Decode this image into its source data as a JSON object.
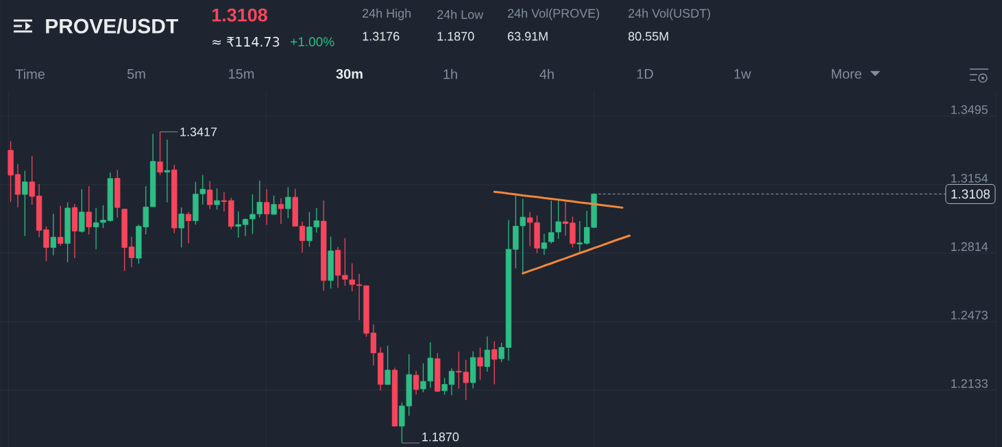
{
  "chart_data": {
    "type": "candlestick",
    "title": "PROVE/USDT",
    "annotations": [
      "1.3108",
      "≈ ₹114.73",
      "+1.00%",
      "24h High",
      "1.3176",
      "24h Low",
      "1.1870",
      "24h Vol(PROVE)",
      "63.91M",
      "24h Vol(USDT)",
      "80.55M",
      "Time",
      "5m",
      "15m",
      "30m",
      "1h",
      "4h",
      "1D",
      "1w",
      "More",
      "1.3417",
      "1.1870"
    ],
    "categories": [
      null,
      null,
      null,
      null,
      null,
      null,
      null,
      null,
      null,
      null,
      null,
      null,
      null,
      null,
      null,
      null,
      null,
      null,
      null,
      null,
      null,
      null,
      null,
      null,
      null,
      null,
      null,
      null,
      null,
      null,
      null,
      null,
      null,
      null,
      null,
      null,
      null,
      null,
      null,
      null,
      null,
      null,
      null,
      null,
      null,
      null,
      null,
      null,
      null,
      null,
      null,
      null,
      null,
      null,
      null,
      null,
      null,
      null,
      null,
      null,
      null,
      null,
      null,
      null,
      null,
      null,
      null,
      null,
      null,
      null,
      null,
      null,
      null,
      null,
      null,
      null,
      null,
      null,
      null,
      null,
      null,
      null,
      null,
      null,
      null,
      null,
      null,
      null,
      null,
      null,
      null,
      null,
      null,
      null,
      null,
      null,
      null,
      null,
      null,
      null,
      null,
      null,
      null,
      null,
      null,
      null,
      null,
      null,
      null,
      null,
      null,
      null,
      null,
      null,
      null,
      null,
      null,
      null,
      null,
      null,
      null,
      null,
      null,
      null,
      null,
      null,
      null,
      null,
      null,
      null,
      null,
      null,
      null,
      null,
      null,
      null,
      null,
      null,
      null,
      null
    ],
    "ohlc": [
      null,
      [
        1.3325,
        1.337,
        1.3069,
        1.3202
      ],
      [
        1.3205,
        1.3257,
        1.3041,
        1.3106
      ],
      [
        1.3106,
        1.3223,
        1.2899,
        1.3168
      ],
      [
        1.3168,
        1.3296,
        1.3055,
        1.3096
      ],
      [
        1.3098,
        1.3157,
        1.2893,
        1.2927
      ],
      [
        1.293,
        1.2947,
        1.2774,
        1.2842
      ],
      [
        1.2842,
        1.301,
        1.2803,
        1.2893
      ],
      [
        1.2893,
        1.3049,
        1.2851,
        1.2862
      ],
      [
        1.2862,
        1.3066,
        1.2769,
        1.3038
      ],
      [
        1.3041,
        1.3058,
        1.2789,
        1.2924
      ],
      [
        1.2922,
        1.3132,
        1.2916,
        1.3018
      ],
      [
        1.3018,
        1.3147,
        1.2907,
        1.2944
      ],
      [
        1.2944,
        1.3039,
        1.2833,
        1.2965
      ],
      [
        1.2967,
        1.3052,
        1.2939,
        1.2978
      ],
      [
        1.2976,
        1.3215,
        1.2971,
        1.3185
      ],
      [
        1.3186,
        1.3228,
        1.299,
        1.3041
      ],
      [
        1.3033,
        1.3035,
        1.2726,
        1.2842
      ],
      [
        1.2845,
        1.2896,
        1.2744,
        1.2791
      ],
      [
        1.2789,
        1.2956,
        1.2761,
        1.2947
      ],
      [
        1.2944,
        1.3147,
        1.2908,
        1.3043
      ],
      [
        1.3045,
        1.3407,
        1.3045,
        1.327
      ],
      [
        1.3268,
        1.3417,
        1.3202,
        1.3217
      ],
      [
        1.3217,
        1.3378,
        1.3066,
        1.3225
      ],
      [
        1.3228,
        1.3253,
        1.2914,
        1.2939
      ],
      [
        1.2939,
        1.3041,
        1.2842,
        1.3009
      ],
      [
        1.3007,
        1.3018,
        1.2863,
        1.2975
      ],
      [
        1.2975,
        1.3168,
        1.2956,
        1.3107
      ],
      [
        1.3109,
        1.3203,
        1.3056,
        1.3132
      ],
      [
        1.3128,
        1.3172,
        1.3033,
        1.3055
      ],
      [
        1.3055,
        1.3136,
        1.303,
        1.3075
      ],
      [
        1.3075,
        1.3117,
        1.3021,
        1.307
      ],
      [
        1.3075,
        1.3089,
        1.2933,
        1.2947
      ],
      [
        1.2947,
        1.3021,
        1.2891,
        1.2956
      ],
      [
        1.2956,
        1.2987,
        1.2899,
        1.2982
      ],
      [
        1.2984,
        1.3106,
        1.291,
        1.3007
      ],
      [
        1.3009,
        1.3175,
        1.2992,
        1.3067
      ],
      [
        1.3066,
        1.3132,
        1.2954,
        1.3009
      ],
      [
        1.3007,
        1.31,
        1.3007,
        1.3056
      ],
      [
        1.3056,
        1.3086,
        1.2959,
        1.3035
      ],
      [
        1.3035,
        1.3143,
        1.2988,
        1.3092
      ],
      [
        1.3092,
        1.3134,
        1.2948,
        1.2948
      ],
      [
        1.2948,
        1.2971,
        1.2817,
        1.2876
      ],
      [
        1.2876,
        1.3018,
        1.2846,
        1.2944
      ],
      [
        1.2944,
        1.3038,
        1.2916,
        1.2975
      ],
      [
        1.2973,
        1.3075,
        1.2627,
        1.2678
      ],
      [
        1.2678,
        1.2896,
        1.2638,
        1.2825
      ],
      [
        1.2828,
        1.2845,
        1.2641,
        1.2704
      ],
      [
        1.2704,
        1.2888,
        1.2652,
        1.2684
      ],
      [
        1.2681,
        1.2763,
        1.2624,
        1.2658
      ],
      [
        1.2657,
        1.2711,
        1.2481,
        1.2653
      ],
      [
        1.2652,
        1.2652,
        1.2398,
        1.2415
      ],
      [
        1.2417,
        1.246,
        1.2255,
        1.2318
      ],
      [
        1.2317,
        1.2345,
        1.2131,
        1.2161
      ],
      [
        1.2161,
        1.2354,
        1.2158,
        1.2232
      ],
      [
        1.2232,
        1.2244,
        1.1952,
        1.1954
      ],
      [
        1.1954,
        1.2071,
        1.187,
        1.2054
      ],
      [
        1.2054,
        1.2311,
        1.2005,
        1.221
      ],
      [
        1.2207,
        1.2229,
        1.211,
        1.2136
      ],
      [
        1.2139,
        1.2266,
        1.2122,
        1.2176
      ],
      [
        1.2178,
        1.2371,
        1.2144,
        1.2292
      ],
      [
        1.2289,
        1.2317,
        1.2124,
        1.2127
      ],
      [
        1.213,
        1.2193,
        1.211,
        1.2161
      ],
      [
        1.2161,
        1.2241,
        1.2108,
        1.2227
      ],
      [
        1.2227,
        1.2324,
        1.2139,
        1.2222
      ],
      [
        1.2222,
        1.2284,
        1.2084,
        1.217
      ],
      [
        1.217,
        1.2326,
        1.2141,
        1.2295
      ],
      [
        1.2295,
        1.2343,
        1.2184,
        1.2252
      ],
      [
        1.225,
        1.24,
        1.2224,
        1.2332
      ],
      [
        1.2334,
        1.2375,
        1.2161,
        1.2286
      ],
      [
        1.2289,
        1.2368,
        1.2272,
        1.2345
      ],
      [
        1.2345,
        1.2978,
        1.228,
        1.2833
      ],
      [
        1.2833,
        1.31,
        1.2738,
        1.2948
      ],
      [
        1.295,
        1.3084,
        1.2718,
        1.2993
      ],
      [
        1.299,
        1.3018,
        1.2848,
        1.2967
      ],
      [
        1.2965,
        1.3001,
        1.2814,
        1.2839
      ],
      [
        1.2837,
        1.291,
        1.2806,
        1.2865
      ],
      [
        1.2871,
        1.3075,
        1.2862,
        1.2916
      ],
      [
        1.2919,
        1.3075,
        1.2886,
        1.297
      ],
      [
        1.297,
        1.3069,
        1.2902,
        1.2961
      ],
      [
        1.2964,
        1.2995,
        1.2842,
        1.2862
      ],
      [
        1.2859,
        1.2973,
        1.282,
        1.2865
      ],
      [
        1.2863,
        1.3024,
        1.2857,
        1.2942
      ],
      [
        1.2942,
        1.3111,
        1.2939,
        1.3108
      ],
      null,
      null,
      null,
      null,
      null,
      null,
      null,
      null,
      null,
      null,
      null,
      null,
      null,
      null,
      null,
      null,
      null,
      null,
      null,
      null,
      null,
      null,
      null,
      null,
      null,
      null,
      null,
      null,
      null,
      null,
      null,
      null,
      null,
      null,
      null,
      null,
      null,
      null,
      null,
      null,
      null,
      null,
      null,
      null,
      null,
      null,
      null,
      null,
      null,
      null,
      null,
      null,
      null,
      null,
      null,
      null
    ],
    "colors": [
      null,
      "#f6465d",
      "#f6465d",
      "#2ebd85",
      "#f6465d",
      "#f6465d",
      "#f6465d",
      "#2ebd85",
      "#f6465d",
      "#2ebd85",
      "#f6465d",
      "#2ebd85",
      "#f6465d",
      "#2ebd85",
      "#2ebd85",
      "#2ebd85",
      "#f6465d",
      "#f6465d",
      "#f6465d",
      "#2ebd85",
      "#2ebd85",
      "#2ebd85",
      "#f6465d",
      "#2ebd85",
      "#f6465d",
      "#2ebd85",
      "#f6465d",
      "#2ebd85",
      "#2ebd85",
      "#f6465d",
      "#2ebd85",
      "#f6465d",
      "#f6465d",
      "#2ebd85",
      "#2ebd85",
      "#2ebd85",
      "#2ebd85",
      "#f6465d",
      "#2ebd85",
      "#f6465d",
      "#2ebd85",
      "#f6465d",
      "#f6465d",
      "#2ebd85",
      "#2ebd85",
      "#f6465d",
      "#2ebd85",
      "#f6465d",
      "#f6465d",
      "#f6465d",
      "#f6465d",
      "#f6465d",
      "#f6465d",
      "#f6465d",
      "#2ebd85",
      "#f6465d",
      "#2ebd85",
      "#2ebd85",
      "#f6465d",
      "#2ebd85",
      "#2ebd85",
      "#f6465d",
      "#2ebd85",
      "#2ebd85",
      "#f6465d",
      "#f6465d",
      "#2ebd85",
      "#f6465d",
      "#2ebd85",
      "#f6465d",
      "#2ebd85",
      "#2ebd85",
      "#2ebd85",
      "#2ebd85",
      "#f6465d",
      "#f6465d",
      "#2ebd85",
      "#2ebd85",
      "#2ebd85",
      "#f6465d",
      "#f6465d",
      "#2ebd85",
      "#2ebd85",
      "#2ebd85",
      null,
      null,
      null,
      null,
      null,
      null,
      null,
      null,
      null,
      null,
      null,
      null,
      null,
      null,
      null,
      null,
      null,
      null,
      null,
      null,
      null,
      null,
      null,
      null,
      null,
      null,
      null,
      null,
      null,
      null,
      null,
      null,
      null,
      null,
      null,
      null,
      null,
      null,
      null,
      null,
      null,
      null,
      null,
      null,
      null,
      null,
      null,
      null,
      null,
      null,
      null,
      null,
      null,
      null,
      null,
      null
    ],
    "series": [
      {
        "type": "line",
        "color": "#f5873a",
        "values": [
          null,
          null,
          null,
          null,
          null,
          null,
          null,
          null,
          null,
          null,
          null,
          null,
          null,
          null,
          null,
          null,
          null,
          null,
          null,
          null,
          null,
          null,
          null,
          null,
          null,
          null,
          null,
          null,
          null,
          null,
          null,
          null,
          null,
          null,
          null,
          null,
          null,
          null,
          null,
          null,
          null,
          null,
          null,
          null,
          null,
          null,
          null,
          null,
          null,
          null,
          null,
          null,
          null,
          null,
          null,
          null,
          null,
          null,
          null,
          null,
          null,
          null,
          null,
          null,
          null,
          null,
          null,
          null,
          null,
          1.3119,
          1.3115,
          1.311,
          1.3106,
          1.3101,
          1.3097,
          1.3093,
          1.3088,
          1.3084,
          1.308,
          1.3075,
          1.3071,
          1.3066,
          1.3062,
          1.3058,
          1.3053,
          1.3049,
          1.3045,
          1.304,
          null,
          null,
          null,
          null,
          null,
          null,
          null,
          null,
          null,
          null,
          null,
          null,
          null,
          null,
          null,
          null,
          null,
          null,
          null,
          null,
          null,
          null,
          null,
          null,
          null,
          null,
          null,
          null,
          null,
          null,
          null,
          null,
          null,
          null,
          null,
          null,
          null,
          null,
          null,
          null,
          null,
          null,
          null,
          null,
          null,
          null,
          null,
          null,
          null,
          null,
          null,
          null
        ]
      },
      {
        "type": "line",
        "color": "#f5873a",
        "values": [
          null,
          null,
          null,
          null,
          null,
          null,
          null,
          null,
          null,
          null,
          null,
          null,
          null,
          null,
          null,
          null,
          null,
          null,
          null,
          null,
          null,
          null,
          null,
          null,
          null,
          null,
          null,
          null,
          null,
          null,
          null,
          null,
          null,
          null,
          null,
          null,
          null,
          null,
          null,
          null,
          null,
          null,
          null,
          null,
          null,
          null,
          null,
          null,
          null,
          null,
          null,
          null,
          null,
          null,
          null,
          null,
          null,
          null,
          null,
          null,
          null,
          null,
          null,
          null,
          null,
          null,
          null,
          null,
          null,
          null,
          null,
          null,
          null,
          1.2713,
          1.2726,
          1.2738,
          1.2751,
          1.2763,
          1.2776,
          1.2788,
          1.2801,
          1.2814,
          1.2826,
          1.2839,
          1.2851,
          1.2864,
          1.2877,
          1.2889,
          1.2901,
          null,
          null,
          null,
          null,
          null,
          null,
          null,
          null,
          null,
          null,
          null,
          null,
          null,
          null,
          null,
          null,
          null,
          null,
          null,
          null,
          null,
          null,
          null,
          null,
          null,
          null,
          null,
          null,
          null,
          null,
          null,
          null,
          null,
          null,
          null,
          null,
          null,
          null,
          null,
          null,
          null,
          null,
          null,
          null,
          null,
          null,
          null,
          null,
          null,
          null,
          null
        ]
      }
    ],
    "ylim": [
      1.185,
      1.362
    ],
    "yticks": [
      1.3495,
      1.3154,
      1.2814,
      1.2473,
      1.2133
    ],
    "grid": "y",
    "ref_lines": [
      {
        "axis": "y",
        "value": 1.3108,
        "label": "1.3108",
        "color": "#9aa1ab",
        "line_style": "dashed"
      }
    ]
  }
}
